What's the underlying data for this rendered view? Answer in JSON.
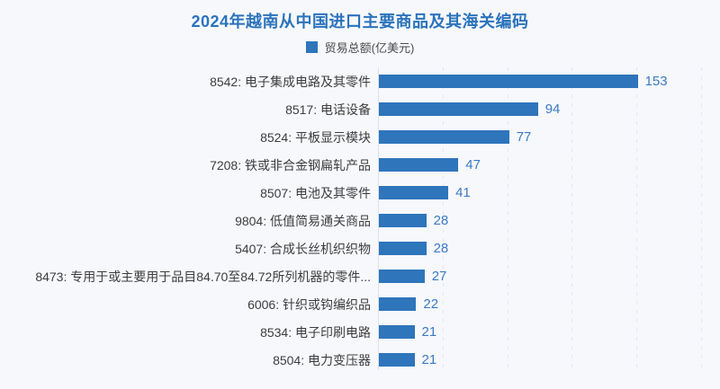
{
  "title": "2024年越南从中国进口主要商品及其海关编码",
  "legend": {
    "label": "贸易总额(亿美元)",
    "swatch_color": "#2e75bb"
  },
  "colors": {
    "background": "#f7f8fc",
    "title": "#2b73bc",
    "bar": "#2e75bb",
    "value_label": "#3a7bc4",
    "category_label": "#3d3d3d",
    "gridline": "#e5e5f0",
    "axis_line": "#dde0ea"
  },
  "chart_data": {
    "type": "bar",
    "orientation": "horizontal",
    "title": "2024年越南从中国进口主要商品及其海关编码",
    "legend_entries": [
      "贸易总额(亿美元)"
    ],
    "categories": [
      "8542: 电子集成电路及其零件",
      "8517: 电话设备",
      "8524: 平板显示模块",
      "7208: 铁或非合金钢扁轧产品",
      "8507: 电池及其零件",
      "9804: 低值简易通关商品",
      "5407: 合成长丝机织织物",
      "8473: 专用于或主要用于品目84.70至84.72所列机器的零件...",
      "6006: 针织或钩编织品",
      "8534: 电子印刷电路",
      "8504: 电力变压器"
    ],
    "values": [
      153,
      94,
      77,
      47,
      41,
      28,
      28,
      27,
      22,
      21,
      21
    ],
    "xlabel": "",
    "ylabel": "",
    "xlim": [
      0,
      191
    ],
    "grid": "vertical-dashed",
    "gridline_count": 5,
    "legend_position": "top-center",
    "value_labels_shown": true
  }
}
